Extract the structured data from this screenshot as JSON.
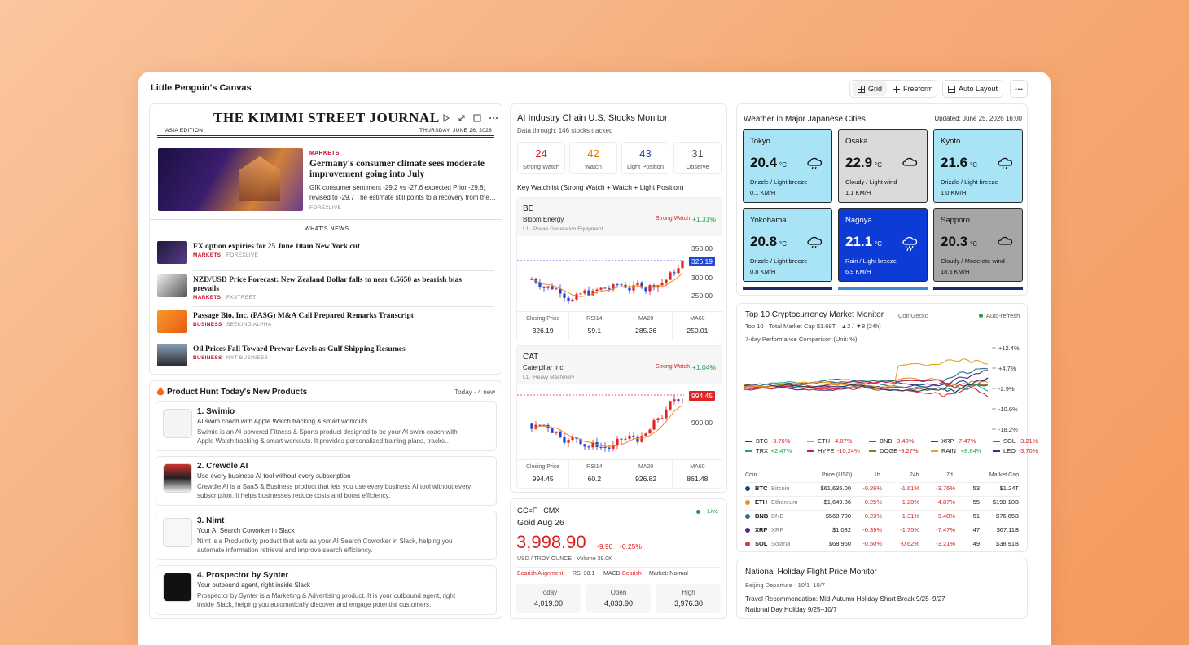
{
  "canvas": {
    "title": "Little Penguin's Canvas",
    "buttons": [
      "Grid",
      "Freeform",
      "Auto Layout"
    ]
  },
  "news": {
    "masthead": "THE KIMIMI STREET JOURNAL",
    "edition": "ASIA EDITION",
    "date": "THURSDAY, JUNE 26, 2026",
    "featured": {
      "section": "MARKETS",
      "headline": "Germany's consumer climate sees moderate improvement going into July",
      "summary": "GfK consumer sentiment -29.2 vs -27.6 expected Prior -29.8; revised to -29.7 The estimate still points to a recovery from the…",
      "source": "FOREXLIVE"
    },
    "section_title": "WHAT'S NEWS",
    "items": [
      {
        "headline": "FX option expiries for 25 June 10am New York cut",
        "section": "MARKETS",
        "source": "FOREXLIVE"
      },
      {
        "headline": "NZD/USD Price Forecast: New Zealand Dollar falls to near 0.5650 as bearish bias prevails",
        "section": "MARKETS",
        "source": "FXSTREET"
      },
      {
        "headline": "Passage Bio, Inc. (PASG) M&A Call Prepared Remarks Transcript",
        "section": "BUSINESS",
        "source": "SEEKING ALPHA"
      },
      {
        "headline": "Oil Prices Fall Toward Prewar Levels as Gulf Shipping Resumes",
        "section": "BUSINESS",
        "source": "NYT BUSINESS"
      }
    ]
  },
  "product_hunt": {
    "title": "Product Hunt Today's New Products",
    "meta": "Today · 4 new",
    "items": [
      {
        "name": "1. Swimio",
        "tagline": "AI swim coach with Apple Watch tracking & smart workouts",
        "description": "Swimio is an AI-powered Fitness & Sports product designed to be your AI swim coach with Apple Watch tracking & smart workouts. It provides personalized training plans, tracks…"
      },
      {
        "name": "2. Crewdle AI",
        "tagline": "Use every business AI tool without every subscription",
        "description": "Crewdle AI is a SaaS & Business product that lets you use every business AI tool without every subscription. It helps businesses reduce costs and boost efficiency."
      },
      {
        "name": "3. Nimt",
        "tagline": "Your AI Search Coworker in Slack",
        "description": "Nimt is a Productivity product that acts as your AI Search Coworker in Slack, helping you automate information retrieval and improve search efficiency."
      },
      {
        "name": "4. Prospector by Synter",
        "tagline": "Your outbound agent, right inside Slack",
        "description": "Prospector by Synter is a Marketing & Advertising product. It is your outbound agent, right inside Slack, helping you automatically discover and engage potential customers."
      }
    ]
  },
  "stocks": {
    "title": "AI Industry Chain U.S. Stocks Monitor",
    "subtitle": "Data through: 146 stocks tracked",
    "counts": [
      {
        "value": "24",
        "label": "Strong Watch",
        "color": "#d81e1e"
      },
      {
        "value": "42",
        "label": "Watch",
        "color": "#e07800"
      },
      {
        "value": "43",
        "label": "Light Position",
        "color": "#1f47b8"
      },
      {
        "value": "31",
        "label": "Observe",
        "color": "#555555"
      }
    ],
    "watchlist_title": "Key Watchlist (Strong Watch + Watch + Light Position)",
    "cards": [
      {
        "ticker": "BE",
        "name": "Bloom Energy",
        "sector": "L1 · Power Generation Equipment",
        "rating": "Strong Watch",
        "change": "+1.31%",
        "axis": [
          "350.00",
          "326.19",
          "300.00",
          "250.00"
        ],
        "badge_color": "#1f47d8",
        "stats": [
          {
            "label": "Closing Price",
            "value": "326.19"
          },
          {
            "label": "RSI14",
            "value": "59.1"
          },
          {
            "label": "MA20",
            "value": "285.36"
          },
          {
            "label": "MA60",
            "value": "250.01"
          }
        ]
      },
      {
        "ticker": "CAT",
        "name": "Caterpillar Inc.",
        "sector": "L1 · Heavy Machinery",
        "rating": "Strong Watch",
        "change": "+1.04%",
        "axis": [
          "994.45",
          "900.00"
        ],
        "badge_color": "#e02424",
        "stats": [
          {
            "label": "Closing Price",
            "value": "994.45"
          },
          {
            "label": "RSI14",
            "value": "60.2"
          },
          {
            "label": "MA20",
            "value": "926.82"
          },
          {
            "label": "MA60",
            "value": "861.48"
          }
        ]
      }
    ]
  },
  "gold": {
    "symbol": "GC=F · CMX",
    "live": "Live",
    "name": "Gold Aug 26",
    "price": "3,998.90",
    "change": "-9.90",
    "change_pct": "-0.25%",
    "unit": "USD / TROY OUNCE · Volume 39.0K",
    "alignment": "Bearish Alignment",
    "rsi": "RSI 30.1",
    "macd": "MACD",
    "macd_signal": "Bearish",
    "market": "Market: Normal",
    "stats": [
      {
        "label": "Today",
        "value": "4,019.00"
      },
      {
        "label": "Open",
        "value": "4,033.90"
      },
      {
        "label": "High",
        "value": "3,976.30"
      }
    ]
  },
  "weather": {
    "title": "Weather in Major Japanese Cities",
    "updated": "Updated: June 25, 2026 16:00",
    "unit": "°C",
    "cities": [
      {
        "name": "Tokyo",
        "temp": "20.4",
        "desc": "Drizzle / Light breeze",
        "wind": "0.1 KM/H",
        "color": "#a8e3f6",
        "text_color": "#111111",
        "icon": "drizzle"
      },
      {
        "name": "Osaka",
        "temp": "22.9",
        "desc": "Cloudy / Light wind",
        "wind": "1.1 KM/H",
        "color": "#dadada",
        "text_color": "#111111",
        "icon": "cloudy"
      },
      {
        "name": "Kyoto",
        "temp": "21.6",
        "desc": "Drizzle / Light breeze",
        "wind": "1.0 KM/H",
        "color": "#a8e3f6",
        "text_color": "#111111",
        "icon": "drizzle"
      },
      {
        "name": "Yokohama",
        "temp": "20.8",
        "desc": "Drizzle / Light breeze",
        "wind": "0.8 KM/H",
        "color": "#a8e3f6",
        "text_color": "#111111",
        "icon": "drizzle"
      },
      {
        "name": "Nagoya",
        "temp": "21.1",
        "desc": "Rain / Light breeze",
        "wind": "6.9 KM/H",
        "color": "#0c3bd6",
        "text_color": "#ffffff",
        "icon": "rain"
      },
      {
        "name": "Sapporo",
        "temp": "20.3",
        "desc": "Cloudy / Moderate wind",
        "wind": "18.6 KM/H",
        "color": "#a6a6a6",
        "text_color": "#111111",
        "icon": "cloudy"
      }
    ]
  },
  "crypto": {
    "title": "Top 10 Cryptocurrency Market Monitor",
    "source": "CoinGecko",
    "refresh": "Auto-refresh",
    "summary": "Top 10 · Total Market Cap $1.69T · ▲2 / ▼8 (24h)",
    "chart_title": "7-day Performance Comparison (Unit: %)",
    "axis": [
      "+12.4%",
      "+4.7%",
      "-2.9%",
      "-10.6%",
      "-18.2%"
    ],
    "legend": [
      {
        "symbol": "BTC",
        "change": "-3.76%",
        "color": "#1f3d8f"
      },
      {
        "symbol": "ETH",
        "change": "-4.87%",
        "color": "#f08a24"
      },
      {
        "symbol": "BNB",
        "change": "-3.48%",
        "color": "#2b6f8a"
      },
      {
        "symbol": "XRP",
        "change": "-7.47%",
        "color": "#4b2a86"
      },
      {
        "symbol": "SOL",
        "change": "-3.21%",
        "color": "#e0303a"
      },
      {
        "symbol": "TRX",
        "change": "+2.47%",
        "color": "#1fa08f"
      },
      {
        "symbol": "HYPE",
        "change": "-10.24%",
        "color": "#d81b3c"
      },
      {
        "symbol": "DOGE",
        "change": "-9.27%",
        "color": "#8a7a3a"
      },
      {
        "symbol": "RAIN",
        "change": "+8.84%",
        "color": "#f0a020"
      },
      {
        "symbol": "LEO",
        "change": "-3.70%",
        "color": "#283a78"
      }
    ],
    "headers": [
      "Coin",
      "Price (USD)",
      "1h",
      "24h",
      "7d",
      "Market Cap"
    ],
    "rows": [
      [
        "BTC",
        "Bitcoin",
        "$61,635.00",
        "-0.26%",
        "-1.61%",
        "-3.76%",
        "53",
        "$1.24T"
      ],
      [
        "ETH",
        "Ethereum",
        "$1,649.86",
        "-0.25%",
        "-1.20%",
        "-4.87%",
        "55",
        "$199.10B"
      ],
      [
        "BNB",
        "BNB",
        "$568.700",
        "-0.23%",
        "-1.31%",
        "-3.48%",
        "51",
        "$76.65B"
      ],
      [
        "XRP",
        "XRP",
        "$1.082",
        "-0.39%",
        "-1.75%",
        "-7.47%",
        "47",
        "$67.11B"
      ],
      [
        "SOL",
        "Solana",
        "$68.960",
        "-0.50%",
        "-0.62%",
        "-3.21%",
        "49",
        "$38.91B"
      ]
    ]
  },
  "flight": {
    "title": "National Holiday Flight Price Monitor",
    "departure": "Beijing Departure · 10/1–10/7",
    "recommendation": "Travel Recommendation: Mid-Autumn Holiday Short Break 9/25–9/27 · National Day Holiday 9/25–10/7"
  }
}
